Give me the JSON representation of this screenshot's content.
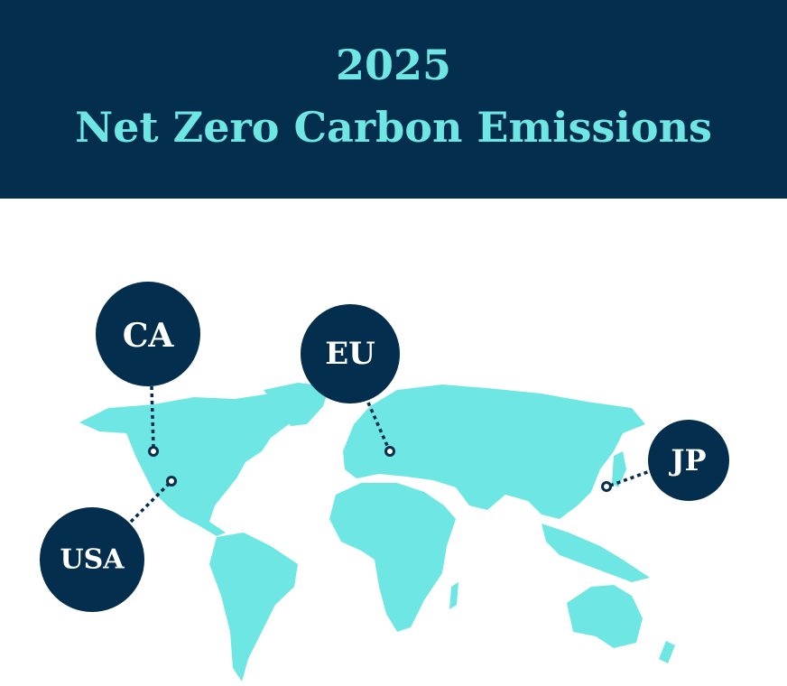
{
  "header": {
    "year": "2025",
    "title": "Net Zero Carbon Emissions"
  },
  "colors": {
    "navy": "#042e4d",
    "land": "#6ee6e3",
    "background": "#ffffff"
  },
  "markers": [
    {
      "label": "CA"
    },
    {
      "label": "EU"
    },
    {
      "label": "USA"
    },
    {
      "label": "JP"
    }
  ]
}
